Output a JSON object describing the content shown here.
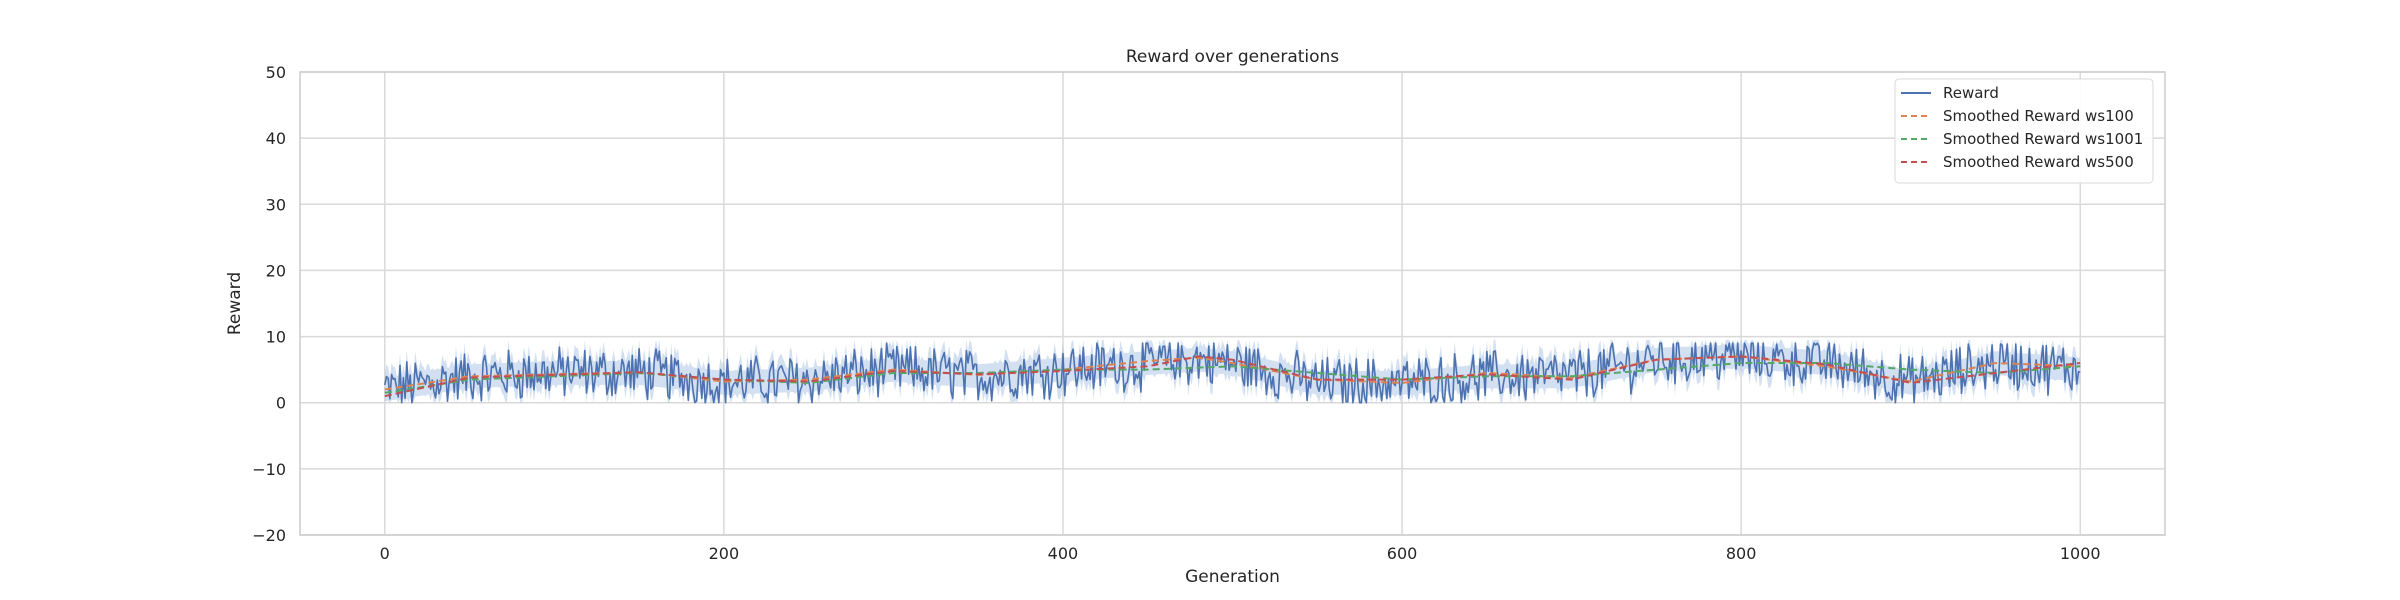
{
  "chart_data": {
    "type": "line",
    "title": "Reward over generations",
    "xlabel": "Generation",
    "ylabel": "Reward",
    "xlim": [
      -50,
      1050
    ],
    "ylim": [
      -20,
      50
    ],
    "xticks": [
      0,
      200,
      400,
      600,
      800,
      1000
    ],
    "yticks": [
      -20,
      -10,
      0,
      10,
      20,
      30,
      40,
      50
    ],
    "grid": true,
    "legend_position": "top-right",
    "colors": {
      "raw": "#4c72b0",
      "band": "#aec7e8",
      "ws100": "#dd8452",
      "ws1001": "#55a868",
      "ws500": "#c44e52"
    },
    "series": [
      {
        "name": "Reward",
        "style": "solid",
        "x": [
          0,
          50,
          100,
          150,
          200,
          250,
          300,
          350,
          400,
          450,
          480,
          500,
          550,
          600,
          650,
          700,
          750,
          800,
          850,
          900,
          950,
          1000
        ],
        "values": [
          2.0,
          4.0,
          4.5,
          4.5,
          3.0,
          3.5,
          5.0,
          4.0,
          5.0,
          6.0,
          6.5,
          6.0,
          3.0,
          3.0,
          4.0,
          4.0,
          6.5,
          7.0,
          6.0,
          3.0,
          6.0,
          5.0
        ]
      },
      {
        "name": "Smoothed Reward ws100",
        "style": "dashed",
        "x": [
          0,
          50,
          100,
          150,
          200,
          250,
          300,
          350,
          400,
          450,
          480,
          500,
          550,
          600,
          650,
          700,
          750,
          800,
          850,
          900,
          950,
          1000
        ],
        "values": [
          2.0,
          4.0,
          4.3,
          4.6,
          3.2,
          3.5,
          5.0,
          4.2,
          5.0,
          6.3,
          6.8,
          6.0,
          3.5,
          3.0,
          4.5,
          3.8,
          6.5,
          7.0,
          5.5,
          3.2,
          6.0,
          5.5
        ]
      },
      {
        "name": "Smoothed Reward ws1001",
        "style": "dashed",
        "x": [
          0,
          50,
          100,
          150,
          200,
          250,
          300,
          350,
          400,
          450,
          500,
          550,
          600,
          650,
          700,
          750,
          800,
          850,
          900,
          950,
          1000
        ],
        "values": [
          1.5,
          3.5,
          4.0,
          4.5,
          3.5,
          3.0,
          4.5,
          4.5,
          5.0,
          5.0,
          5.5,
          4.5,
          3.5,
          4.0,
          4.0,
          5.0,
          6.0,
          6.0,
          5.0,
          4.5,
          5.5
        ]
      },
      {
        "name": "Smoothed Reward ws500",
        "style": "dashed",
        "x": [
          0,
          50,
          100,
          150,
          200,
          250,
          300,
          350,
          400,
          450,
          480,
          500,
          550,
          600,
          650,
          700,
          750,
          800,
          850,
          900,
          950,
          1000
        ],
        "values": [
          1.0,
          3.8,
          4.2,
          4.6,
          3.5,
          3.2,
          4.8,
          4.3,
          4.8,
          5.5,
          7.0,
          6.5,
          3.5,
          3.5,
          4.3,
          3.5,
          6.5,
          7.0,
          5.8,
          3.0,
          4.5,
          6.0
        ]
      }
    ]
  }
}
